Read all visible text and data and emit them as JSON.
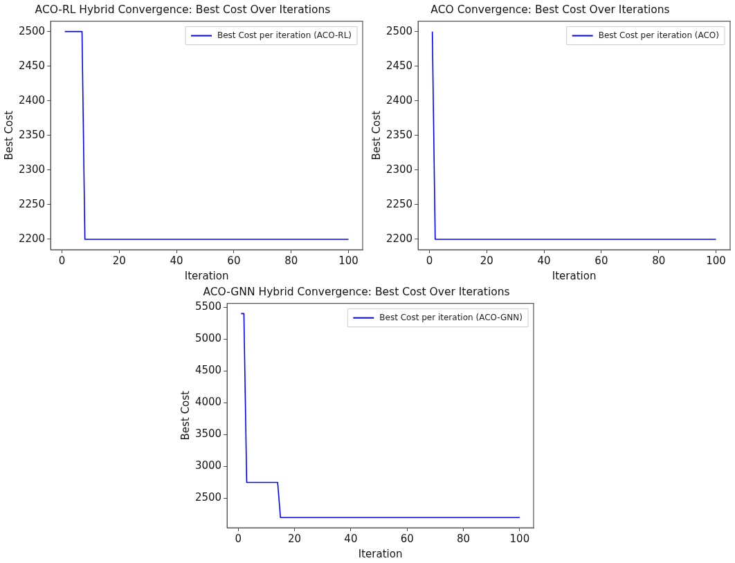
{
  "chart_data": [
    {
      "type": "line",
      "title": "ACO-RL Hybrid Convergence: Best Cost Over Iterations",
      "xlabel": "Iteration",
      "ylabel": "Best Cost",
      "series": [
        {
          "name": "Best Cost per iteration (ACO-RL)",
          "color": "#0000ff",
          "x": [
            1,
            7,
            8,
            100
          ],
          "values": [
            2500,
            2500,
            2200,
            2200
          ]
        }
      ],
      "xlim": [
        -3.95,
        104.95
      ],
      "xticks": [
        0,
        20,
        40,
        60,
        80,
        100
      ],
      "ylim": [
        2185,
        2515
      ],
      "yticks": [
        2200,
        2250,
        2300,
        2350,
        2400,
        2450,
        2500
      ],
      "grid": false,
      "legend": "top right",
      "marker": "none",
      "line_style": "solid"
    },
    {
      "type": "line",
      "title": "ACO Convergence: Best Cost Over Iterations",
      "xlabel": "Iteration",
      "ylabel": "Best Cost",
      "series": [
        {
          "name": "Best Cost per iteration (ACO)",
          "color": "#0000ff",
          "x": [
            1,
            2,
            100
          ],
          "values": [
            2500,
            2200,
            2200
          ]
        }
      ],
      "xlim": [
        -3.95,
        104.95
      ],
      "xticks": [
        0,
        20,
        40,
        60,
        80,
        100
      ],
      "ylim": [
        2185,
        2515
      ],
      "yticks": [
        2200,
        2250,
        2300,
        2350,
        2400,
        2450,
        2500
      ],
      "grid": false,
      "legend": "top right",
      "marker": "none",
      "line_style": "solid"
    },
    {
      "type": "line",
      "title": "ACO-GNN Hybrid Convergence: Best Cost Over Iterations",
      "xlabel": "Iteration",
      "ylabel": "Best Cost",
      "series": [
        {
          "name": "Best Cost per iteration (ACO-GNN)",
          "color": "#0000ff",
          "x": [
            1,
            2,
            3,
            14,
            15,
            100
          ],
          "values": [
            5400,
            5400,
            2750,
            2750,
            2200,
            2200
          ]
        }
      ],
      "xlim": [
        -3.95,
        104.95
      ],
      "xticks": [
        0,
        20,
        40,
        60,
        80,
        100
      ],
      "ylim": [
        2040,
        5560
      ],
      "yticks": [
        2500,
        3000,
        3500,
        4000,
        4500,
        5000,
        5500
      ],
      "grid": false,
      "legend": "top right",
      "marker": "none",
      "line_style": "solid"
    }
  ]
}
